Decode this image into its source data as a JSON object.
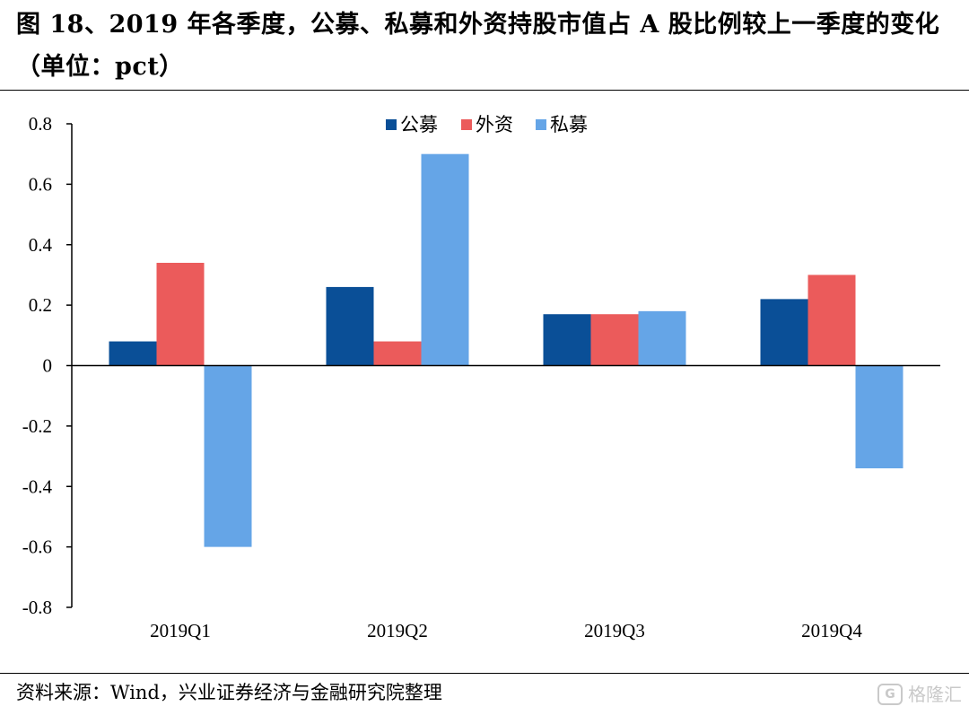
{
  "title_text": "图 18、2019 年各季度，公募、私募和外资持股市值占 A 股比例较上一季度的变化（单位：pct）",
  "source_text": "资料来源：Wind，兴业证券经济与金融研究院整理",
  "watermark": {
    "icon": "gelonghui-logo-icon",
    "text": "格隆汇"
  },
  "chart_data": {
    "type": "bar",
    "title": "",
    "xlabel": "",
    "ylabel": "",
    "categories": [
      "2019Q1",
      "2019Q2",
      "2019Q3",
      "2019Q4"
    ],
    "series": [
      {
        "name": "公募",
        "values": [
          0.08,
          0.26,
          0.17,
          0.22
        ],
        "color": "#0a4f97"
      },
      {
        "name": "外资",
        "values": [
          0.34,
          0.08,
          0.17,
          0.3
        ],
        "color": "#eb5b5b"
      },
      {
        "name": "私募",
        "values": [
          -0.6,
          0.7,
          0.18,
          -0.34
        ],
        "color": "#65a5e7"
      }
    ],
    "ylim": [
      -0.8,
      0.8
    ],
    "yticks": [
      0.8,
      0.6,
      0.4,
      0.2,
      0,
      -0.2,
      -0.4,
      -0.6,
      -0.8
    ],
    "ytick_labels": [
      "0.8",
      "0.6",
      "0.4",
      "0.2",
      "0",
      "-0.2",
      "-0.4",
      "-0.6",
      "-0.8"
    ],
    "grid": false,
    "legend_position": "top-center"
  }
}
